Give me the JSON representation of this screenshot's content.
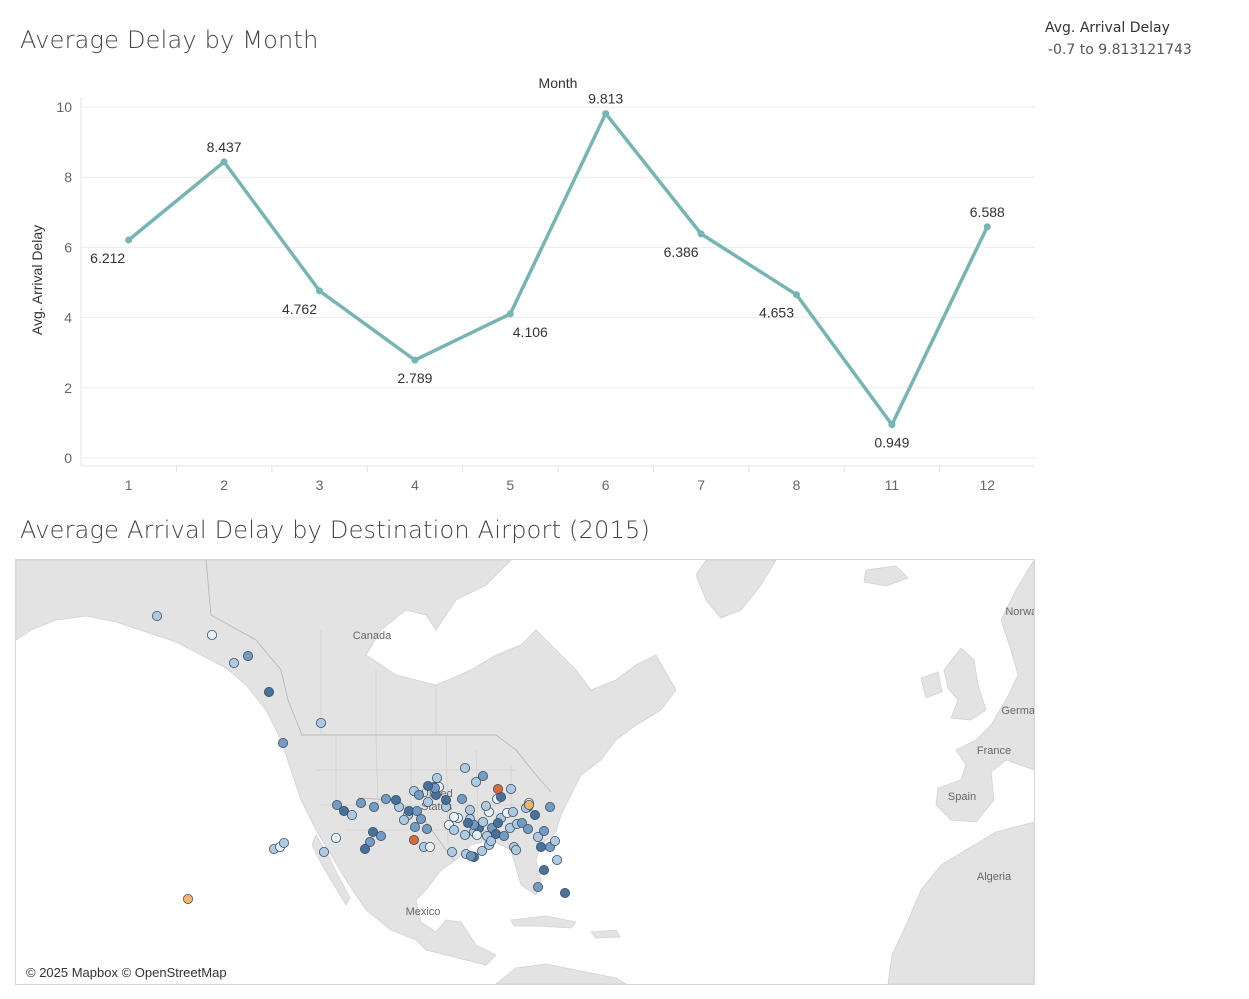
{
  "dashboard": {
    "line_title": "Average Delay by Month",
    "map_title": "Average Arrival Delay by Destination Airport (2015)"
  },
  "legend": {
    "title": "Avg. Arrival Delay",
    "range_text": "-0.7 to 9.813121743",
    "min": -0.7,
    "max": 9.813121743
  },
  "chart_data": [
    {
      "type": "line",
      "title": "Average Delay by Month",
      "xlabel": "Month",
      "ylabel": "Avg. Arrival Delay",
      "categories": [
        "1",
        "2",
        "3",
        "4",
        "5",
        "6",
        "7",
        "8",
        "11",
        "12"
      ],
      "values": [
        6.212,
        8.437,
        4.762,
        2.789,
        4.106,
        9.813,
        6.386,
        4.653,
        0.949,
        6.588
      ],
      "data_labels": [
        "6.212",
        "8.437",
        "4.762",
        "2.789",
        "4.106",
        "9.813",
        "6.386",
        "4.653",
        "0.949",
        "6.588"
      ],
      "yticks": [
        0,
        2,
        4,
        6,
        8,
        10
      ],
      "ylim": [
        0,
        10
      ],
      "line_color": "#76b5b1",
      "grid": true
    }
  ],
  "map": {
    "attribution": "© 2025 Mapbox © OpenStreetMap",
    "place_labels": [
      "Canada",
      "United States",
      "Mexico",
      "France",
      "Spain",
      "Algeria",
      "Norway",
      "Germany"
    ],
    "land_color": "#e3e3e3",
    "water_color": "#ffffff",
    "scale_colors": [
      "#e8f1f8",
      "#a9c9e3",
      "#6d98c2",
      "#3f6b9a",
      "#f2b366",
      "#d9622e",
      "#c0392b"
    ]
  }
}
